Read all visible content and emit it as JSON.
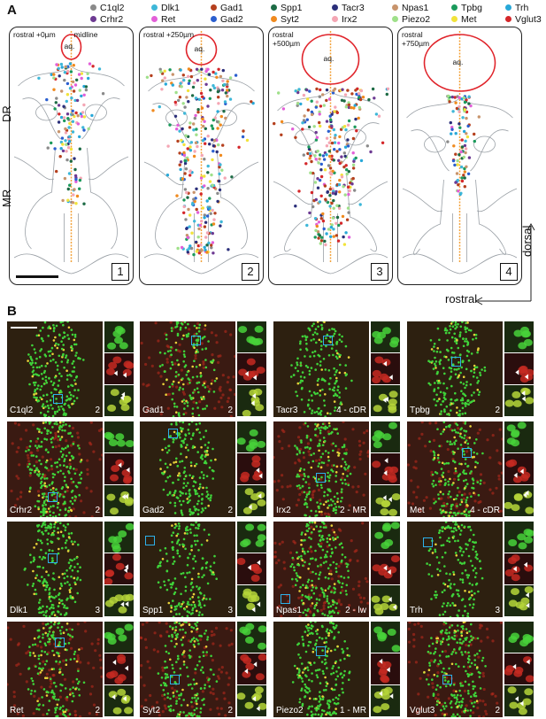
{
  "panelA": {
    "letter": "A",
    "legend": [
      {
        "name": "C1ql2",
        "color": "#8a8a8a"
      },
      {
        "name": "Dlk1",
        "color": "#3eb7d8"
      },
      {
        "name": "Gad1",
        "color": "#b5401e"
      },
      {
        "name": "Spp1",
        "color": "#1d6b45"
      },
      {
        "name": "Tacr3",
        "color": "#2b2f7a"
      },
      {
        "name": "Npas1",
        "color": "#c8946c"
      },
      {
        "name": "Tpbg",
        "color": "#1b9a5b"
      },
      {
        "name": "Trh",
        "color": "#28a8d8"
      },
      {
        "name": "Crhr2",
        "color": "#6d3a92"
      },
      {
        "name": "Ret",
        "color": "#e35fd8"
      },
      {
        "name": "Gad2",
        "color": "#2b5fcf"
      },
      {
        "name": "Syt2",
        "color": "#f08a1e"
      },
      {
        "name": "Irx2",
        "color": "#f4a6b4"
      },
      {
        "name": "Piezo2",
        "color": "#9fe08a"
      },
      {
        "name": "Met",
        "color": "#f2e33a"
      },
      {
        "name": "Vglut3",
        "color": "#d4272a"
      }
    ],
    "sections": [
      {
        "label": "rostral +0µm",
        "extra": "midline",
        "aq": "aq.",
        "number": "1"
      },
      {
        "label": "rostral +250µm",
        "aq": "aq.",
        "number": "2"
      },
      {
        "label": "rostral +500µm",
        "aq": "aq.",
        "number": "3"
      },
      {
        "label": "rostral +750µm",
        "aq": "aq.",
        "number": "4"
      }
    ],
    "side_labels": {
      "dr": "DR",
      "mr": "MR"
    },
    "axis": {
      "dorsal": "dorsal",
      "rostral": "rostral"
    }
  },
  "panelB": {
    "letter": "B",
    "tiles": [
      {
        "gene": "C1ql2",
        "num": "2"
      },
      {
        "gene": "Gad1",
        "num": "2"
      },
      {
        "gene": "Tacr3",
        "num": "4 - cDR"
      },
      {
        "gene": "Tpbg",
        "num": "2"
      },
      {
        "gene": "Crhr2",
        "num": "2"
      },
      {
        "gene": "Gad2",
        "num": "2"
      },
      {
        "gene": "Irx2",
        "num": "2 - MR"
      },
      {
        "gene": "Met",
        "num": "4 - cDR"
      },
      {
        "gene": "Dlk1",
        "num": "3"
      },
      {
        "gene": "Spp1",
        "num": "3"
      },
      {
        "gene": "Npas1",
        "num": "2 - lw"
      },
      {
        "gene": "Trh",
        "num": "3"
      },
      {
        "gene": "Ret",
        "num": "2"
      },
      {
        "gene": "Syt2",
        "num": "2"
      },
      {
        "gene": "Piezo2",
        "num": "1 - MR"
      },
      {
        "gene": "Vglut3",
        "num": "2"
      }
    ]
  }
}
